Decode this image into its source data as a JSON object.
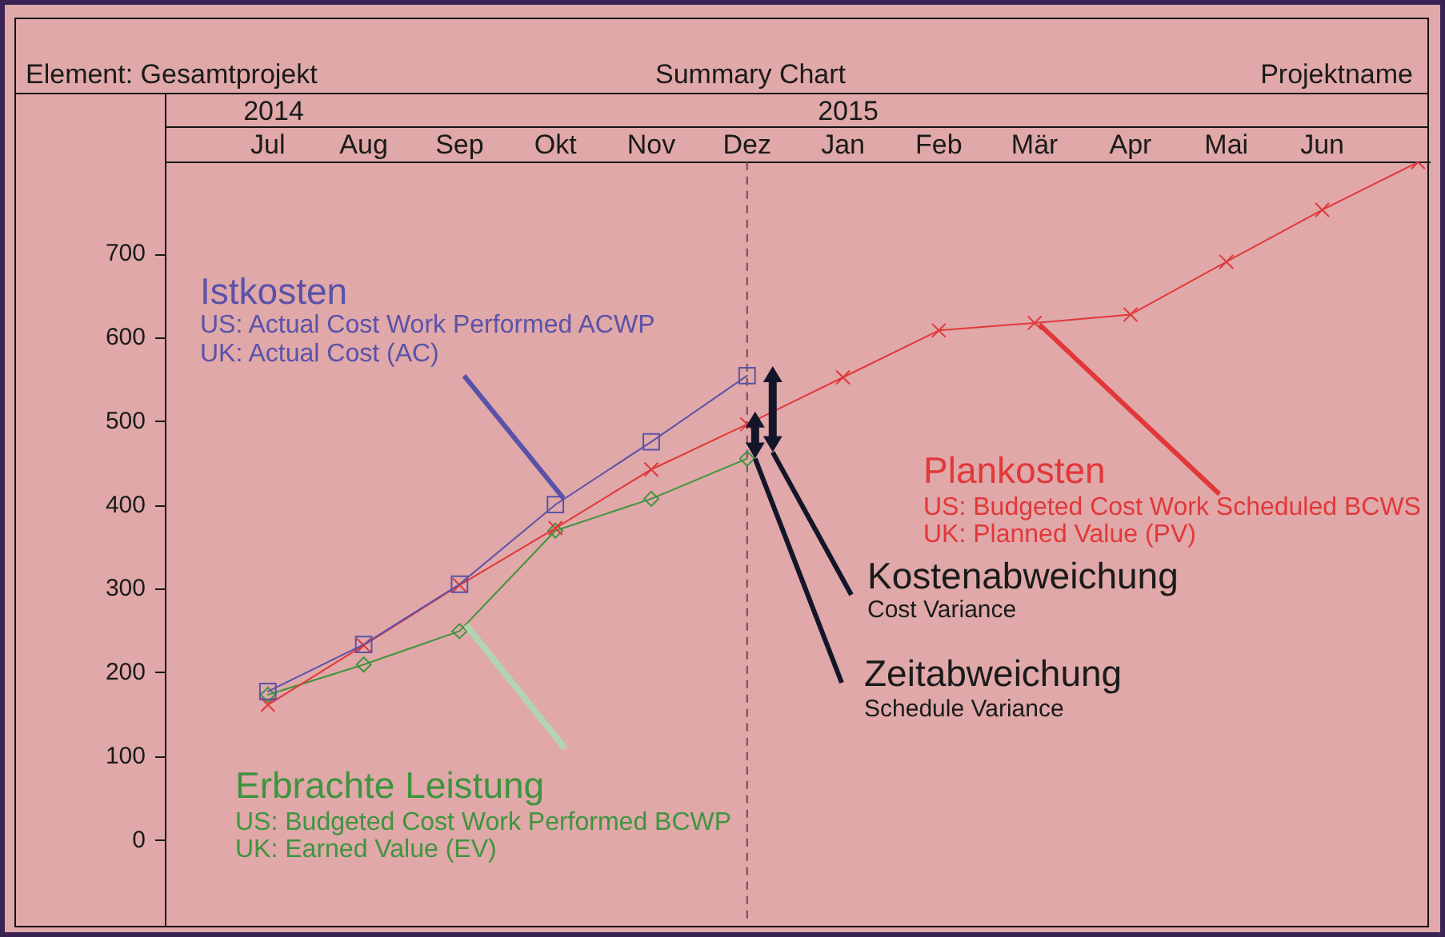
{
  "chart_data": {
    "type": "line",
    "title": "Summary Chart",
    "categories": [
      "Jul",
      "Aug",
      "Sep",
      "Okt",
      "Nov",
      "Dez",
      "Jan",
      "Feb",
      "Mär",
      "Apr",
      "Mai",
      "Jun",
      null
    ],
    "series": [
      {
        "name": "Istkosten",
        "color": "#5a52aa",
        "marker": "square",
        "values": [
          178,
          234,
          306,
          401,
          476,
          555,
          null,
          null,
          null,
          null,
          null,
          null,
          null
        ]
      },
      {
        "name": "Plankosten",
        "color": "#e2383a",
        "marker": "cross",
        "values": [
          162,
          233,
          305,
          373,
          443,
          497,
          553,
          609,
          618,
          628,
          691,
          753,
          810
        ]
      },
      {
        "name": "Erbrachte Leistung",
        "color": "#3f943f",
        "marker": "diamond",
        "values": [
          174,
          210,
          250,
          370,
          408,
          456,
          null,
          null,
          null,
          null,
          null,
          null,
          null
        ]
      }
    ],
    "ylim": [
      -100,
      810
    ],
    "yticks": [
      0,
      100,
      200,
      300,
      400,
      500,
      600,
      700
    ],
    "ref_lines": [
      {
        "axis": "x",
        "value": "Dez",
        "color": "#6b5050",
        "line_style": "dashed"
      }
    ],
    "annotations": [
      "Element: Gesamtprojekt",
      "Projektname",
      "2014",
      "2015",
      "US: Actual Cost Work Performed ACWP",
      {
        "text": "UK: Actual Cost (AC)",
        "x": "Okt",
        "y": 401
      },
      {
        "text": "US: Budgeted Cost Work Scheduled BCWS",
        "x": "Mär",
        "y": 618
      },
      "UK: Planned Value (PV)",
      "US: Budgeted Cost Work Performed BCWP",
      "UK: Earned Value (EV)",
      "Kostenabweichung",
      "Cost Variance",
      {
        "text": "Zeitabweichung",
        "x": "Dez",
        "y": 456
      },
      "Schedule Variance"
    ]
  }
}
